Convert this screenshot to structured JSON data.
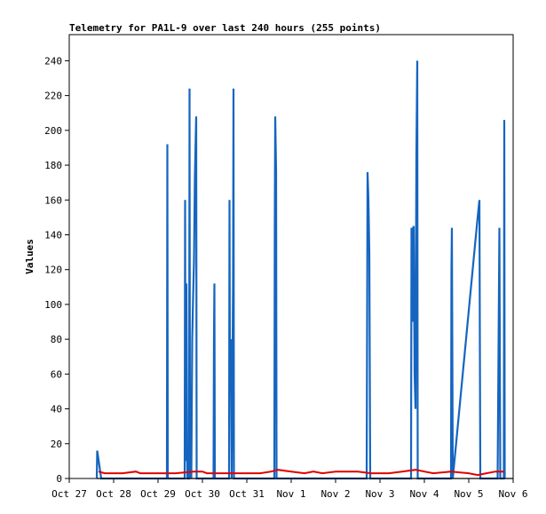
{
  "chart_data": {
    "type": "line",
    "title": "Telemetry for PA1L-9 over last 240 hours (255 points)",
    "xlabel": "",
    "ylabel": "Values",
    "x_ticks": [
      "Oct 27",
      "Oct 28",
      "Oct 29",
      "Oct 30",
      "Oct 31",
      "Nov 1",
      "Nov 2",
      "Nov 3",
      "Nov 4",
      "Nov 5",
      "Nov 6"
    ],
    "xlim_days": [
      0,
      10
    ],
    "y_ticks": [
      0,
      20,
      40,
      60,
      80,
      100,
      120,
      140,
      160,
      180,
      200,
      220,
      240
    ],
    "ylim": [
      0,
      255
    ],
    "grid": false,
    "legend": "none",
    "colors": {
      "series_a": "#1565c0",
      "series_b": "#e00000",
      "frame": "#000000"
    },
    "series": [
      {
        "color": "#1565c0",
        "points": [
          [
            0.62,
            0
          ],
          [
            0.63,
            16
          ],
          [
            0.72,
            0
          ],
          [
            2.2,
            0
          ],
          [
            2.21,
            192
          ],
          [
            2.22,
            0
          ],
          [
            2.6,
            0
          ],
          [
            2.61,
            160
          ],
          [
            2.62,
            10
          ],
          [
            2.64,
            112
          ],
          [
            2.66,
            0
          ],
          [
            2.7,
            0
          ],
          [
            2.71,
            224
          ],
          [
            2.72,
            5
          ],
          [
            2.75,
            0
          ],
          [
            2.77,
            80
          ],
          [
            2.79,
            104
          ],
          [
            2.81,
            125
          ],
          [
            2.83,
            173
          ],
          [
            2.85,
            197
          ],
          [
            2.86,
            208
          ],
          [
            2.87,
            0
          ],
          [
            3.25,
            0
          ],
          [
            3.26,
            80
          ],
          [
            3.27,
            112
          ],
          [
            3.28,
            0
          ],
          [
            3.6,
            0
          ],
          [
            3.61,
            160
          ],
          [
            3.62,
            60
          ],
          [
            3.64,
            80
          ],
          [
            3.66,
            0
          ],
          [
            3.69,
            112
          ],
          [
            3.7,
            224
          ],
          [
            3.71,
            0
          ],
          [
            4.62,
            0
          ],
          [
            4.63,
            145
          ],
          [
            4.64,
            208
          ],
          [
            4.66,
            176
          ],
          [
            4.67,
            0
          ],
          [
            6.7,
            0
          ],
          [
            6.71,
            88
          ],
          [
            6.72,
            176
          ],
          [
            6.74,
            160
          ],
          [
            6.76,
            130
          ],
          [
            6.78,
            0
          ],
          [
            7.7,
            0
          ],
          [
            7.71,
            144
          ],
          [
            7.72,
            120
          ],
          [
            7.74,
            90
          ],
          [
            7.75,
            144
          ],
          [
            7.76,
            145
          ],
          [
            7.78,
            60
          ],
          [
            7.8,
            40
          ],
          [
            7.82,
            185
          ],
          [
            7.84,
            240
          ],
          [
            7.85,
            0
          ],
          [
            8.6,
            0
          ],
          [
            8.61,
            120
          ],
          [
            8.62,
            144
          ],
          [
            8.64,
            0
          ],
          [
            9.2,
            150
          ],
          [
            9.24,
            160
          ],
          [
            9.26,
            0
          ],
          [
            9.65,
            0
          ],
          [
            9.67,
            72
          ],
          [
            9.69,
            144
          ],
          [
            9.71,
            0
          ],
          [
            9.79,
            0
          ],
          [
            9.8,
            206
          ],
          [
            9.81,
            0
          ]
        ]
      },
      {
        "color": "#e00000",
        "points": [
          [
            0.66,
            4
          ],
          [
            0.8,
            3
          ],
          [
            1.2,
            3
          ],
          [
            1.5,
            4
          ],
          [
            1.6,
            3
          ],
          [
            2.0,
            3
          ],
          [
            2.4,
            3
          ],
          [
            2.8,
            4
          ],
          [
            3.0,
            4
          ],
          [
            3.1,
            3
          ],
          [
            3.5,
            3
          ],
          [
            4.0,
            3
          ],
          [
            4.3,
            3
          ],
          [
            4.55,
            4
          ],
          [
            4.7,
            5
          ],
          [
            5.0,
            4
          ],
          [
            5.3,
            3
          ],
          [
            5.5,
            4
          ],
          [
            5.7,
            3
          ],
          [
            6.0,
            4
          ],
          [
            6.5,
            4
          ],
          [
            6.8,
            3
          ],
          [
            7.2,
            3
          ],
          [
            7.5,
            4
          ],
          [
            7.8,
            5
          ],
          [
            8.0,
            4
          ],
          [
            8.2,
            3
          ],
          [
            8.6,
            4
          ],
          [
            9.0,
            3
          ],
          [
            9.2,
            2
          ],
          [
            9.4,
            3
          ],
          [
            9.6,
            4
          ],
          [
            9.8,
            4
          ]
        ]
      },
      {
        "color": "#000000",
        "points": [
          [
            0.62,
            0
          ],
          [
            10,
            0
          ]
        ]
      }
    ]
  }
}
